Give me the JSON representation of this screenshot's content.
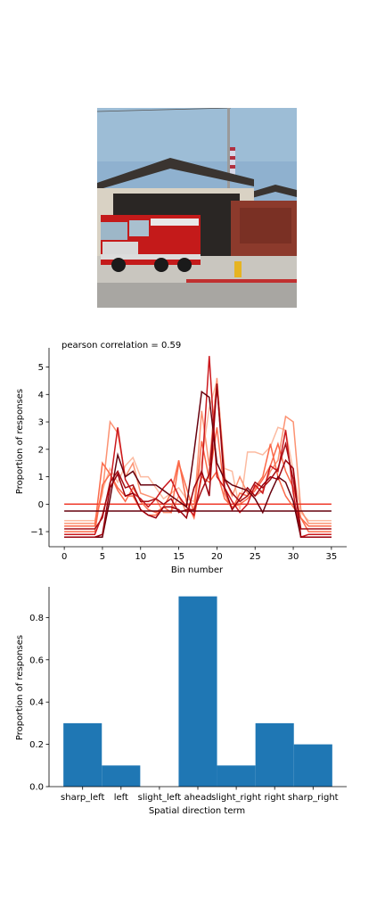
{
  "photo": {
    "subject": "fire-station-with-fire-truck"
  },
  "chart_data": [
    {
      "type": "line",
      "title": "pearson correlation = 0.59",
      "xlabel": "Bin number",
      "ylabel": "Proportion of responses",
      "xlim": [
        -2,
        37
      ],
      "ylim": [
        -1.55,
        5.7
      ],
      "xticks": [
        0,
        5,
        10,
        15,
        20,
        25,
        30,
        35
      ],
      "yticks": [
        -1,
        0,
        1,
        2,
        3,
        4,
        5
      ],
      "x": [
        0,
        1,
        2,
        3,
        4,
        5,
        6,
        7,
        8,
        9,
        10,
        11,
        12,
        13,
        14,
        15,
        16,
        17,
        18,
        19,
        20,
        21,
        22,
        23,
        24,
        25,
        26,
        27,
        28,
        29,
        30,
        31,
        32,
        33,
        34,
        35
      ],
      "series": [
        {
          "color": "#fcbba1",
          "values": [
            -0.6,
            -0.6,
            -0.6,
            -0.6,
            -0.6,
            0.5,
            1.3,
            0.8,
            1.4,
            1.7,
            1.0,
            1.0,
            0.6,
            0.2,
            0.4,
            0.6,
            0.2,
            0.1,
            1.6,
            3.5,
            4.5,
            1.3,
            1.2,
            -0.2,
            1.9,
            1.9,
            1.8,
            2.1,
            2.8,
            2.7,
            1.2,
            -0.3,
            -0.6,
            -0.6,
            -0.6,
            -0.6
          ]
        },
        {
          "color": "#fc9272",
          "values": [
            -0.7,
            -0.7,
            -0.7,
            -0.7,
            -0.7,
            0.4,
            3.0,
            2.6,
            1.0,
            1.5,
            0.4,
            0.3,
            0.2,
            -0.3,
            -0.3,
            0.3,
            -0.3,
            -0.2,
            3.4,
            1.4,
            4.6,
            1.0,
            0.3,
            1.0,
            0.4,
            0.3,
            0.5,
            1.2,
            1.6,
            3.2,
            3.0,
            -0.2,
            -0.7,
            -0.7,
            -0.7,
            -0.7
          ]
        },
        {
          "color": "#fb6a4a",
          "values": [
            -0.8,
            -0.8,
            -0.8,
            -0.8,
            -0.8,
            1.5,
            1.1,
            0.6,
            0.3,
            0.3,
            -0.2,
            -0.4,
            -0.4,
            -0.1,
            0.4,
            1.6,
            0.1,
            -0.5,
            1.0,
            0.8,
            1.2,
            0.2,
            -0.1,
            0.0,
            0.2,
            0.5,
            0.9,
            1.4,
            2.2,
            1.2,
            0.6,
            -0.5,
            -0.8,
            -0.8,
            -0.8,
            -0.8
          ]
        },
        {
          "color": "#ef3b2c",
          "values": [
            0.0,
            0.0,
            0.0,
            0.0,
            0.0,
            0.0,
            0.0,
            0.0,
            0.0,
            0.0,
            0.0,
            0.0,
            0.0,
            0.0,
            0.0,
            0.0,
            0.0,
            0.0,
            0.0,
            0.0,
            0.0,
            0.0,
            0.0,
            0.0,
            0.0,
            0.0,
            0.0,
            0.0,
            0.0,
            0.0,
            0.0,
            0.0,
            0.0,
            0.0,
            0.0,
            0.0
          ]
        },
        {
          "color": "#fb6a4a",
          "values": [
            -1.0,
            -1.0,
            -1.0,
            -1.0,
            -1.0,
            0.7,
            1.1,
            0.5,
            0.1,
            0.6,
            0.1,
            -0.2,
            -0.3,
            -0.1,
            -0.3,
            1.5,
            0.6,
            -0.3,
            2.3,
            0.9,
            2.8,
            0.4,
            -0.2,
            0.4,
            0.3,
            0.6,
            1.0,
            2.2,
            1.0,
            0.3,
            -0.1,
            -0.5,
            -1.0,
            -1.0,
            -1.0,
            -1.0
          ]
        },
        {
          "color": "#cb181d",
          "values": [
            -1.1,
            -1.1,
            -1.1,
            -1.1,
            -1.1,
            -0.4,
            0.7,
            2.8,
            0.9,
            0.4,
            0.2,
            -0.1,
            0.2,
            0.6,
            0.9,
            0.3,
            -0.1,
            -0.4,
            1.1,
            5.4,
            1.0,
            0.6,
            0.1,
            -0.3,
            0.0,
            0.7,
            0.4,
            1.4,
            1.2,
            2.7,
            0.4,
            -1.2,
            -1.1,
            -1.1,
            -1.1,
            -1.1
          ]
        },
        {
          "color": "#a50f15",
          "values": [
            -0.9,
            -0.9,
            -0.9,
            -0.9,
            -0.9,
            -0.5,
            0.8,
            1.2,
            0.6,
            0.7,
            0.1,
            0.1,
            0.2,
            0.0,
            0.2,
            -0.3,
            -0.2,
            -0.2,
            0.5,
            1.1,
            4.3,
            0.9,
            0.4,
            0.1,
            0.3,
            0.8,
            0.6,
            0.9,
            1.3,
            2.2,
            0.9,
            -0.9,
            -0.9,
            -0.9,
            -0.9,
            -0.9
          ]
        },
        {
          "color": "#67000d",
          "values": [
            -0.25,
            -0.25,
            -0.25,
            -0.25,
            -0.25,
            -0.25,
            -0.25,
            -0.25,
            -0.25,
            -0.25,
            -0.25,
            -0.25,
            -0.25,
            -0.25,
            -0.25,
            -0.25,
            -0.25,
            -0.25,
            -0.25,
            -0.25,
            -0.25,
            -0.25,
            -0.25,
            -0.25,
            -0.25,
            -0.25,
            -0.25,
            -0.25,
            -0.25,
            -0.25,
            -0.25,
            -0.25,
            -0.25,
            -0.25,
            -0.25,
            -0.25
          ]
        },
        {
          "color": "#67000d",
          "values": [
            -1.2,
            -1.2,
            -1.2,
            -1.2,
            -1.2,
            -1.2,
            0.2,
            1.8,
            1.0,
            1.2,
            0.7,
            0.7,
            0.7,
            0.5,
            0.3,
            0.1,
            -0.1,
            1.9,
            4.1,
            3.9,
            1.5,
            0.9,
            0.7,
            0.6,
            0.5,
            0.2,
            -0.3,
            0.4,
            1.0,
            0.8,
            0.1,
            -1.2,
            -1.2,
            -1.2,
            -1.2,
            -1.2
          ]
        },
        {
          "color": "#99000d",
          "values": [
            -1.2,
            -1.2,
            -1.2,
            -1.2,
            -1.2,
            -1.1,
            0.6,
            1.1,
            0.3,
            0.4,
            -0.2,
            -0.4,
            -0.5,
            -0.1,
            -0.1,
            -0.2,
            -0.5,
            0.6,
            1.2,
            0.3,
            4.4,
            0.6,
            -0.2,
            0.2,
            0.6,
            0.3,
            0.7,
            1.0,
            0.9,
            1.6,
            1.3,
            -1.2,
            -1.2,
            -1.2,
            -1.2,
            -1.2
          ]
        }
      ]
    },
    {
      "type": "bar",
      "xlabel": "Spatial direction term",
      "ylabel": "Proportion of responses",
      "categories": [
        "sharp_left",
        "left",
        "slight_left",
        "ahead",
        "slight_right",
        "right",
        "sharp_right"
      ],
      "values": [
        0.3,
        0.1,
        0.0,
        0.9,
        0.1,
        0.3,
        0.2
      ],
      "ylim": [
        0,
        0.945
      ],
      "yticks": [
        "0.0",
        "0.2",
        "0.4",
        "0.6",
        "0.8"
      ],
      "color": "#1f77b4"
    }
  ]
}
